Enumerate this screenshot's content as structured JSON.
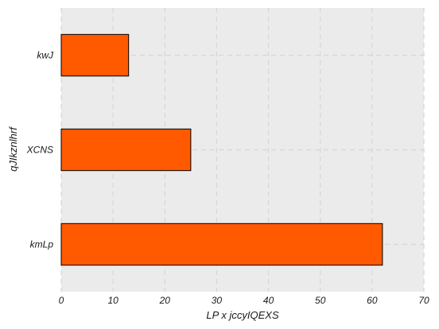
{
  "chart_data": {
    "type": "bar",
    "orientation": "horizontal",
    "categories": [
      "kmLp",
      "XCNS",
      "kwJ"
    ],
    "values": [
      62,
      25,
      13
    ],
    "xlabel": "LP x jccyIQEXS",
    "ylabel": "qJIkznlhrf",
    "xlim": [
      0,
      70
    ],
    "xticks": [
      0,
      10,
      20,
      30,
      40,
      50,
      60,
      70
    ],
    "grid": true,
    "bar_color": "#ff5a00",
    "bar_edge_color": "#000000",
    "plot_background": "#ebebeb",
    "grid_color": "#d6d6d6"
  }
}
